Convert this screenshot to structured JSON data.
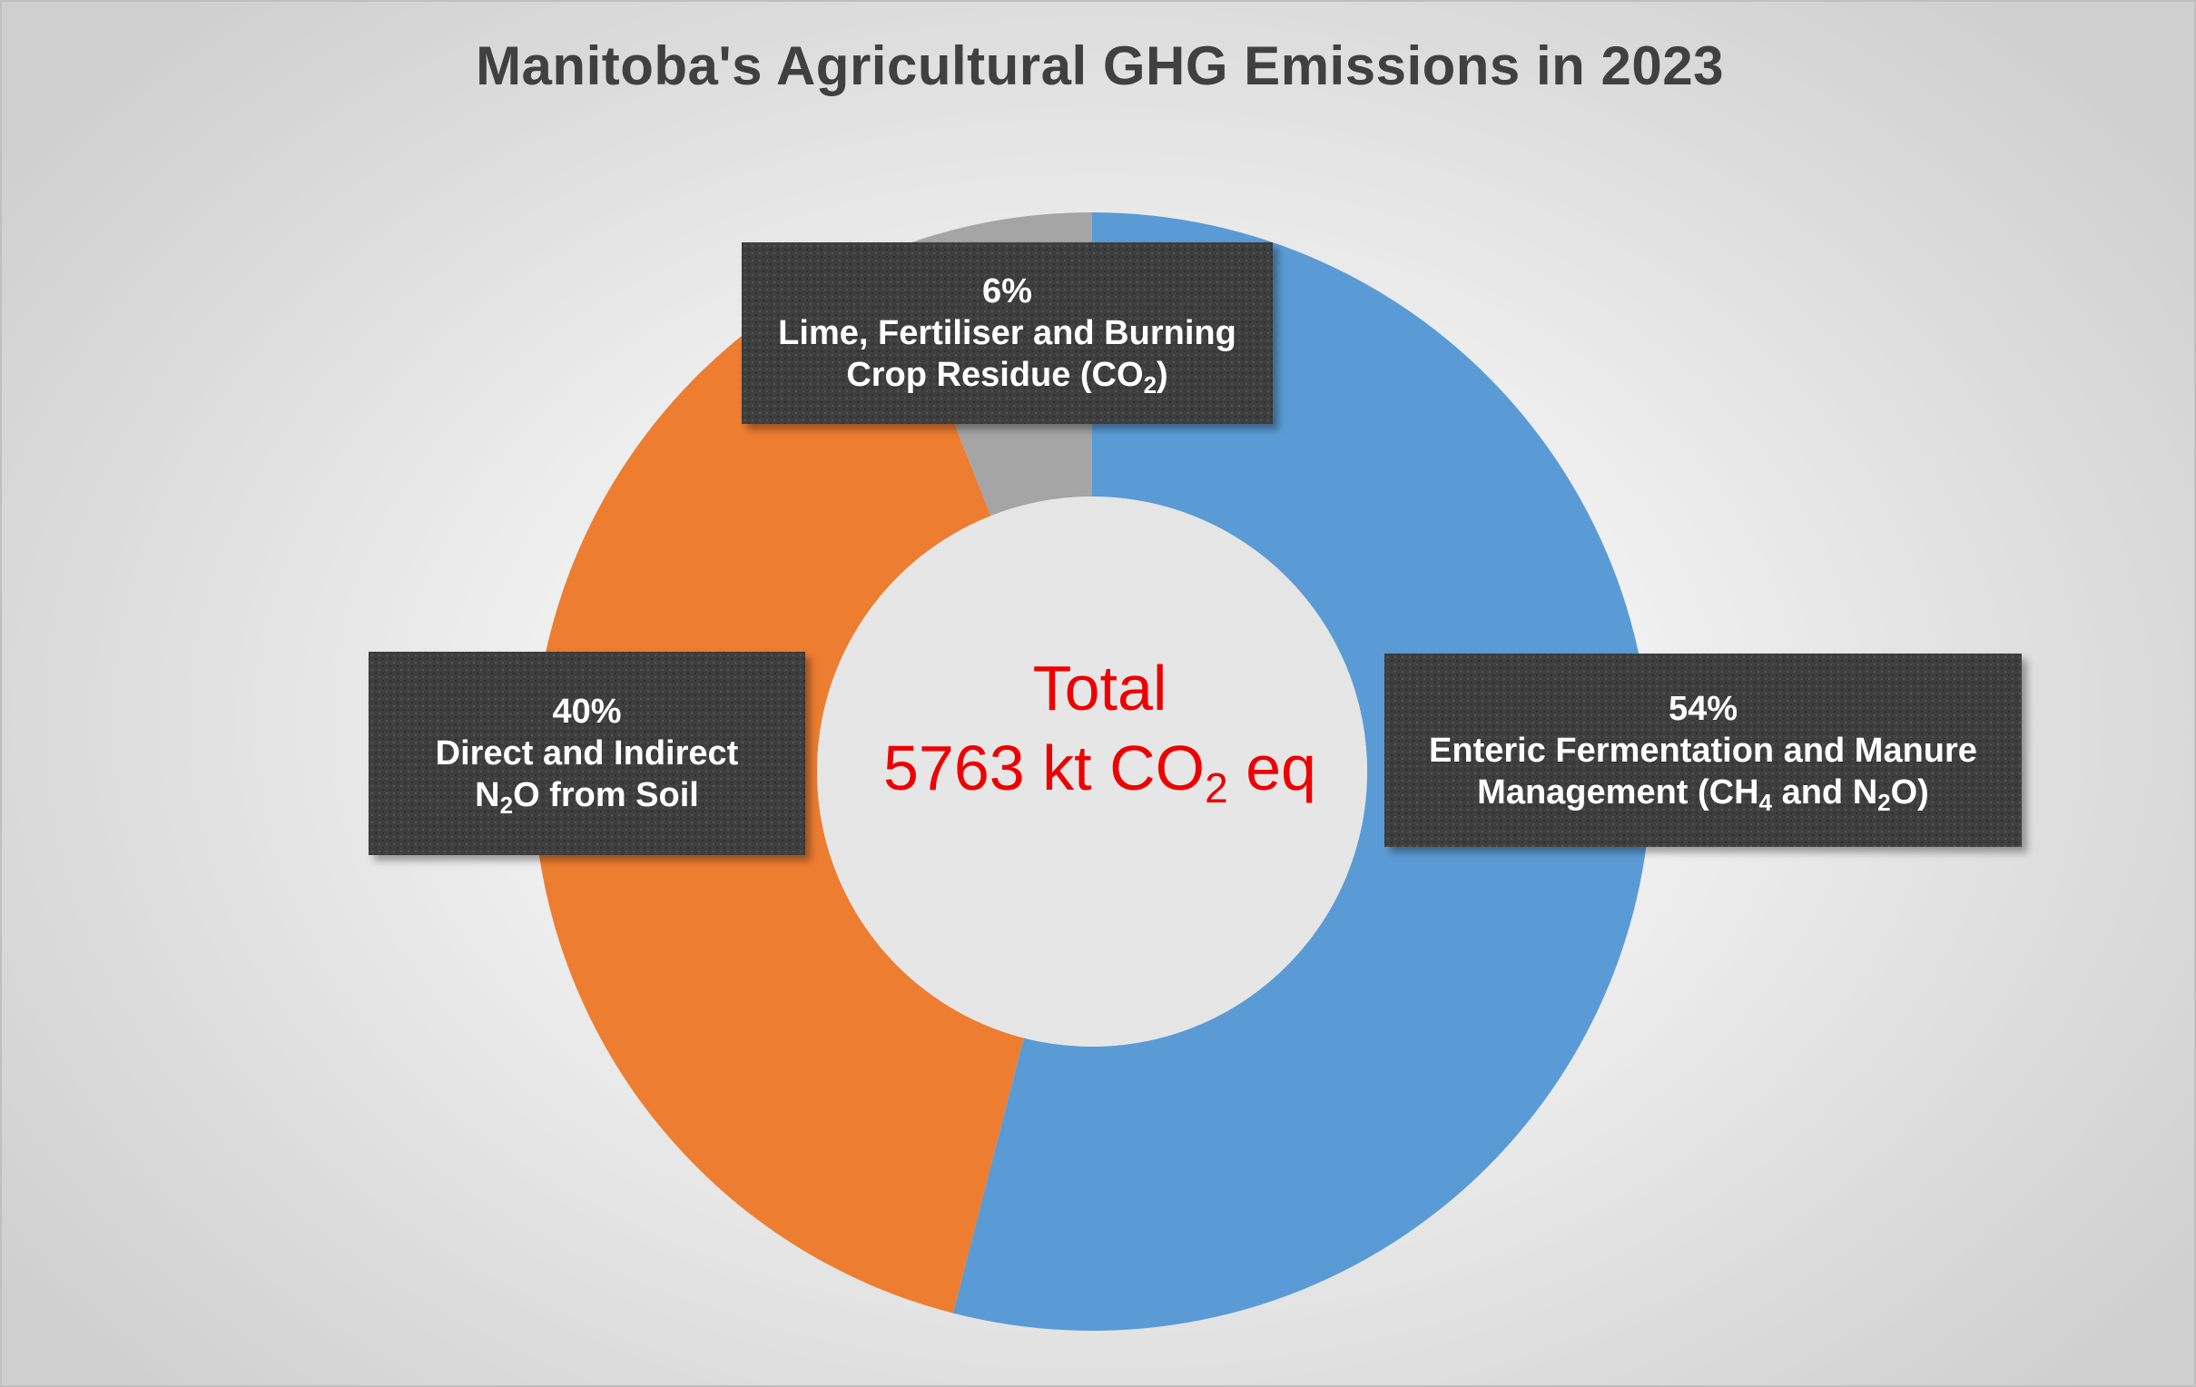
{
  "chart_data": {
    "type": "pie",
    "variant": "donut",
    "title": "Manitoba's Agricultural GHG Emissions in 2023",
    "center_label": {
      "line1": "Total",
      "value_prefix": "5763 kt CO",
      "value_sub": "2",
      "value_suffix": " eq"
    },
    "slices": [
      {
        "key": "enteric",
        "value": 54,
        "percent_label": "54%",
        "label_line1": "Enteric Fermentation and Manure",
        "label_line2_parts": [
          "Management (CH",
          "4",
          " and N",
          "2",
          "O)"
        ],
        "color": "#5b9bd5"
      },
      {
        "key": "soil",
        "value": 40,
        "percent_label": "40%",
        "label_line1": "Direct and Indirect",
        "label_line2_parts": [
          "N",
          "2",
          "O from Soil"
        ],
        "color": "#ed7d31"
      },
      {
        "key": "lime",
        "value": 6,
        "percent_label": "6%",
        "label_line1": "Lime, Fertiliser and Burning",
        "label_line2_parts": [
          "Crop Residue (CO",
          "2",
          ")"
        ],
        "color": "#a5a5a5"
      }
    ],
    "start_angle": "12 o'clock, clockwise",
    "legend": "none"
  }
}
